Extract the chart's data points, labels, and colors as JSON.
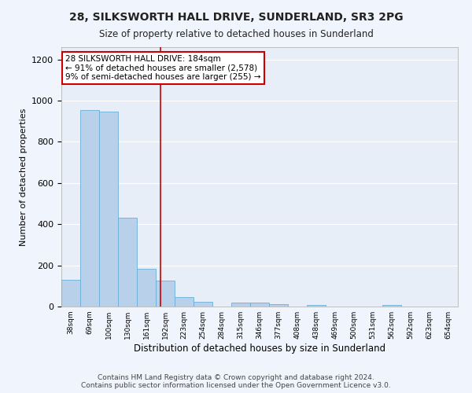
{
  "title": "28, SILKSWORTH HALL DRIVE, SUNDERLAND, SR3 2PG",
  "subtitle": "Size of property relative to detached houses in Sunderland",
  "xlabel": "Distribution of detached houses by size in Sunderland",
  "ylabel": "Number of detached properties",
  "bar_color": "#b8d0ea",
  "bar_edgecolor": "#6aaed6",
  "background_color": "#e8eef8",
  "fig_background_color": "#f0f4fc",
  "grid_color": "#ffffff",
  "annotation_box_edgecolor": "#cc0000",
  "vline_color": "#cc0000",
  "categories": [
    "38sqm",
    "69sqm",
    "100sqm",
    "130sqm",
    "161sqm",
    "192sqm",
    "223sqm",
    "254sqm",
    "284sqm",
    "315sqm",
    "346sqm",
    "377sqm",
    "408sqm",
    "438sqm",
    "469sqm",
    "500sqm",
    "531sqm",
    "562sqm",
    "592sqm",
    "623sqm",
    "654sqm"
  ],
  "values": [
    128,
    955,
    948,
    430,
    185,
    125,
    45,
    22,
    0,
    18,
    18,
    10,
    0,
    8,
    0,
    0,
    0,
    8,
    0,
    0,
    0
  ],
  "ylim": [
    0,
    1260
  ],
  "yticks": [
    0,
    200,
    400,
    600,
    800,
    1000,
    1200
  ],
  "annotation_line1": "28 SILKSWORTH HALL DRIVE: 184sqm",
  "annotation_line2": "← 91% of detached houses are smaller (2,578)",
  "annotation_line3": "9% of semi-detached houses are larger (255) →",
  "footer1": "Contains HM Land Registry data © Crown copyright and database right 2024.",
  "footer2": "Contains public sector information licensed under the Open Government Licence v3.0."
}
